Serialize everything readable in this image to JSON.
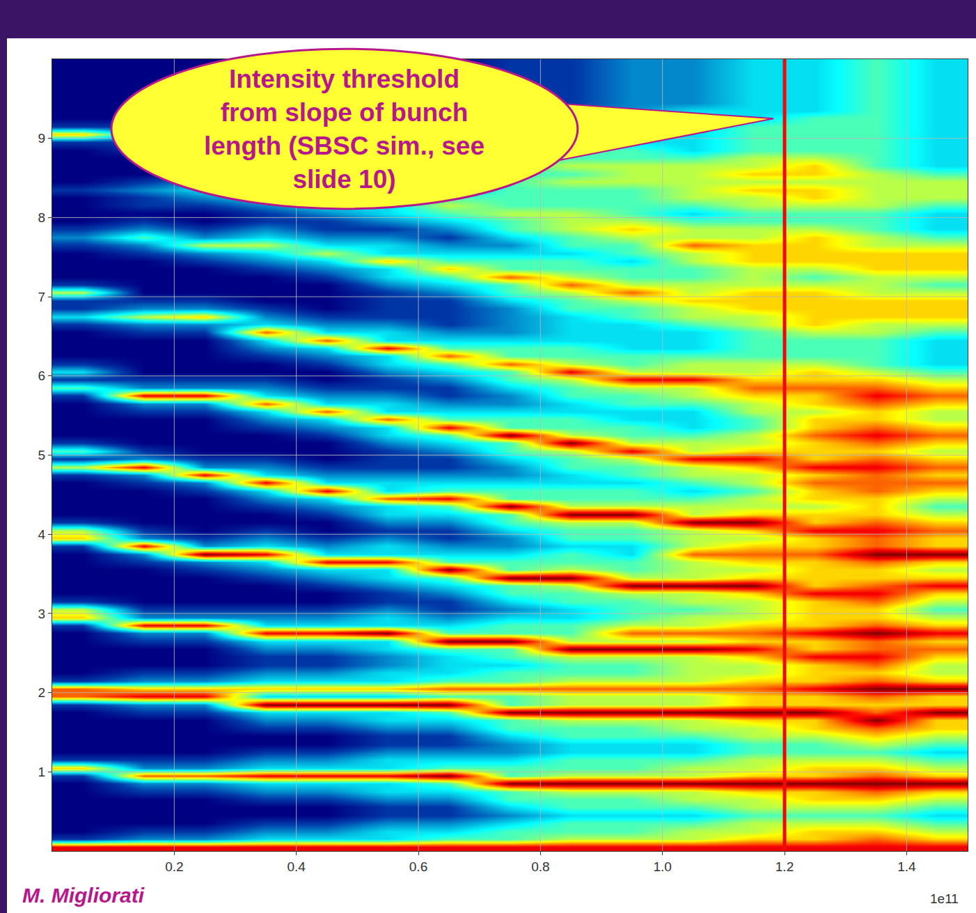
{
  "chart_data": {
    "type": "heatmap",
    "annotation": [
      "Intensity threshold",
      "from slope of bunch",
      "length (SBSC sim., see",
      "slide 10)"
    ],
    "credit": "M. Migliorati",
    "x_exponent": "1e11",
    "threshold": 1.2,
    "color": "Jet",
    "grid": true,
    "xlim": [
      0,
      1.5
    ],
    "xticks": [
      0.2,
      0.4,
      0.6,
      0.8,
      {
        "value": 1,
        "label": "1.0"
      },
      1.2,
      1.4
    ],
    "ylim": [
      0,
      10
    ],
    "yticks": [
      1,
      2,
      3,
      4,
      5,
      6,
      7,
      8,
      9
    ],
    "zlim": [
      0,
      9
    ],
    "x": [
      0.05,
      0.15,
      0.25,
      0.35,
      0.45,
      0.55,
      0.65,
      0.75,
      0.85,
      0.95,
      1.05,
      1.15,
      1.25,
      1.35,
      1.45
    ],
    "y": [
      0.05,
      0.15,
      0.25,
      0.35,
      0.45,
      0.55,
      0.65,
      0.75,
      0.85,
      0.95,
      1.05,
      1.15,
      1.25,
      1.35,
      1.45,
      1.55,
      1.65,
      1.75,
      1.85,
      1.95,
      2.05,
      2.15,
      2.25,
      2.35,
      2.45,
      2.55,
      2.65,
      2.75,
      2.85,
      2.95,
      3.05,
      3.15,
      3.25,
      3.35,
      3.45,
      3.55,
      3.65,
      3.75,
      3.85,
      3.95,
      4.05,
      4.15,
      4.25,
      4.35,
      4.45,
      4.55,
      4.65,
      4.75,
      4.85,
      4.95,
      5.05,
      5.15,
      5.25,
      5.35,
      5.45,
      5.55,
      5.65,
      5.75,
      5.85,
      5.95,
      6.05,
      6.15,
      6.25,
      6.35,
      6.45,
      6.55,
      6.65,
      6.75,
      6.85,
      6.95,
      7.05,
      7.15,
      7.25,
      7.35,
      7.45,
      7.55,
      7.65,
      7.75,
      7.85,
      7.95,
      8.05,
      8.15,
      8.25,
      8.35,
      8.45,
      8.55,
      8.65,
      8.75,
      8.85,
      8.95,
      9.05,
      9.15,
      9.25,
      9.35,
      9.45,
      9.55,
      9.65,
      9.75,
      9.85,
      9.95
    ],
    "z": [
      [
        8,
        1,
        0,
        0,
        0,
        0,
        0,
        0,
        0,
        1,
        6,
        1,
        0,
        0,
        0,
        0,
        0,
        0,
        1,
        7,
        7,
        1,
        0,
        0,
        0,
        0,
        0,
        0,
        1,
        6,
        5,
        1,
        0,
        0,
        0,
        0,
        0,
        0,
        1,
        6,
        5,
        1,
        0,
        0,
        0,
        0,
        0,
        1,
        5,
        1,
        4,
        1,
        0,
        0,
        0,
        0,
        0,
        1,
        4,
        1,
        3,
        1,
        0,
        0,
        0,
        0,
        1,
        3,
        1,
        1,
        5,
        1,
        0,
        0,
        0,
        0,
        1,
        2,
        1,
        0,
        0,
        0,
        0,
        1,
        0,
        0,
        0,
        0,
        0,
        1,
        6,
        1,
        0,
        0,
        0,
        0,
        0,
        0,
        0,
        0
      ],
      [
        8,
        2,
        1,
        0,
        0,
        0,
        0,
        1,
        2,
        7,
        2,
        1,
        0,
        0,
        0,
        0,
        0,
        1,
        2,
        8,
        6,
        2,
        1,
        0,
        0,
        0,
        1,
        2,
        8,
        2,
        1,
        0,
        0,
        0,
        0,
        0,
        1,
        2,
        8,
        2,
        1,
        0,
        0,
        0,
        0,
        0,
        1,
        2,
        8,
        2,
        1,
        0,
        0,
        0,
        0,
        1,
        2,
        8,
        2,
        1,
        0,
        0,
        0,
        0,
        0,
        1,
        2,
        5,
        2,
        1,
        0,
        0,
        0,
        0,
        0,
        1,
        2,
        4,
        2,
        1,
        0,
        1,
        1,
        2,
        1,
        0,
        0,
        0,
        1,
        1,
        2,
        1,
        0,
        0,
        0,
        0,
        0,
        0,
        0,
        0
      ],
      [
        8,
        2,
        1,
        0,
        0,
        0,
        0,
        1,
        2,
        7,
        2,
        1,
        0,
        0,
        0,
        0,
        0,
        1,
        2,
        8,
        6,
        2,
        1,
        0,
        0,
        0,
        1,
        2,
        8,
        2,
        1,
        0,
        0,
        0,
        0,
        1,
        2,
        9,
        2,
        1,
        0,
        0,
        0,
        0,
        0,
        1,
        2,
        8,
        2,
        1,
        0,
        0,
        0,
        0,
        0,
        1,
        2,
        8,
        2,
        1,
        0,
        0,
        0,
        0,
        0,
        1,
        2,
        6,
        2,
        1,
        0,
        0,
        0,
        0,
        1,
        2,
        5,
        2,
        1,
        0,
        0,
        1,
        2,
        3,
        2,
        1,
        0,
        1,
        2,
        2,
        2,
        1,
        0,
        0,
        0,
        0,
        0,
        0,
        0,
        0
      ],
      [
        8,
        3,
        2,
        1,
        0,
        0,
        1,
        2,
        3,
        8,
        3,
        2,
        1,
        0,
        0,
        1,
        2,
        3,
        9,
        3,
        6,
        3,
        2,
        1,
        1,
        2,
        3,
        8,
        3,
        2,
        1,
        0,
        0,
        0,
        1,
        2,
        3,
        8,
        3,
        2,
        1,
        0,
        0,
        1,
        2,
        3,
        8,
        3,
        2,
        1,
        0,
        0,
        0,
        1,
        2,
        3,
        7,
        3,
        2,
        1,
        0,
        0,
        1,
        2,
        3,
        7,
        3,
        2,
        1,
        0,
        0,
        0,
        0,
        1,
        2,
        3,
        5,
        3,
        2,
        1,
        1,
        2,
        3,
        4,
        3,
        2,
        2,
        2,
        3,
        3,
        3,
        2,
        1,
        0,
        0,
        0,
        0,
        0,
        0,
        0
      ],
      [
        8,
        3,
        2,
        1,
        0,
        0,
        1,
        2,
        3,
        8,
        3,
        2,
        1,
        0,
        0,
        1,
        2,
        3,
        9,
        3,
        6,
        3,
        2,
        1,
        1,
        2,
        3,
        8,
        3,
        2,
        1,
        0,
        0,
        1,
        2,
        3,
        8,
        3,
        2,
        1,
        0,
        0,
        1,
        2,
        3,
        8,
        3,
        2,
        1,
        0,
        0,
        0,
        1,
        2,
        3,
        7,
        3,
        2,
        1,
        0,
        0,
        1,
        2,
        3,
        7,
        3,
        2,
        1,
        0,
        0,
        0,
        0,
        1,
        2,
        3,
        5,
        3,
        2,
        1,
        1,
        2,
        3,
        4,
        3,
        2,
        1,
        2,
        3,
        3,
        3,
        2,
        1,
        0,
        0,
        0,
        0,
        0,
        0,
        0,
        0
      ],
      [
        8,
        3,
        3,
        2,
        1,
        1,
        2,
        3,
        3,
        8,
        3,
        3,
        2,
        1,
        1,
        2,
        3,
        3,
        9,
        3,
        6,
        3,
        3,
        2,
        2,
        3,
        3,
        9,
        3,
        3,
        2,
        1,
        1,
        2,
        3,
        3,
        8,
        3,
        3,
        2,
        1,
        2,
        3,
        3,
        7,
        3,
        3,
        2,
        1,
        1,
        1,
        2,
        3,
        3,
        7,
        3,
        3,
        2,
        1,
        1,
        2,
        3,
        3,
        8,
        3,
        3,
        2,
        1,
        1,
        1,
        1,
        2,
        3,
        3,
        6,
        3,
        3,
        2,
        1,
        2,
        3,
        3,
        4,
        3,
        3,
        3,
        3,
        3,
        3,
        3,
        3,
        2,
        1,
        0,
        0,
        0,
        0,
        0,
        0,
        0
      ],
      [
        8,
        4,
        3,
        2,
        1,
        1,
        2,
        3,
        4,
        9,
        4,
        3,
        2,
        1,
        1,
        2,
        3,
        4,
        9,
        4,
        7,
        4,
        3,
        3,
        3,
        4,
        9,
        4,
        3,
        2,
        1,
        1,
        2,
        3,
        4,
        9,
        4,
        3,
        2,
        1,
        1,
        2,
        3,
        4,
        8,
        4,
        3,
        2,
        1,
        1,
        2,
        3,
        4,
        8,
        4,
        3,
        2,
        1,
        1,
        2,
        3,
        4,
        7,
        4,
        3,
        2,
        1,
        1,
        1,
        1,
        2,
        3,
        4,
        6,
        4,
        3,
        2,
        1,
        2,
        3,
        4,
        5,
        4,
        3,
        3,
        3,
        4,
        4,
        4,
        3,
        2,
        1,
        0,
        0,
        0,
        0,
        0,
        0,
        0,
        0
      ],
      [
        8,
        4,
        4,
        3,
        2,
        3,
        4,
        4,
        9,
        4,
        4,
        3,
        2,
        2,
        3,
        4,
        4,
        9,
        4,
        4,
        7,
        4,
        4,
        3,
        4,
        4,
        9,
        4,
        4,
        3,
        2,
        3,
        4,
        4,
        9,
        4,
        4,
        3,
        2,
        2,
        3,
        4,
        4,
        9,
        4,
        4,
        3,
        2,
        2,
        3,
        4,
        4,
        9,
        4,
        4,
        3,
        2,
        2,
        3,
        4,
        4,
        7,
        4,
        4,
        3,
        2,
        2,
        2,
        2,
        3,
        4,
        4,
        7,
        4,
        4,
        3,
        2,
        3,
        4,
        4,
        5,
        4,
        4,
        4,
        4,
        4,
        4,
        4,
        4,
        3,
        2,
        2,
        1,
        1,
        1,
        1,
        1,
        1,
        1,
        1
      ],
      [
        8,
        5,
        4,
        4,
        3,
        4,
        4,
        5,
        9,
        5,
        4,
        4,
        3,
        3,
        4,
        4,
        5,
        9,
        5,
        5,
        7,
        5,
        4,
        4,
        5,
        9,
        5,
        4,
        4,
        3,
        3,
        4,
        4,
        5,
        9,
        5,
        4,
        4,
        3,
        4,
        4,
        5,
        9,
        5,
        4,
        4,
        3,
        3,
        4,
        4,
        5,
        9,
        5,
        4,
        4,
        3,
        3,
        4,
        4,
        5,
        8,
        5,
        4,
        4,
        3,
        3,
        3,
        3,
        4,
        4,
        5,
        7,
        5,
        4,
        4,
        3,
        4,
        4,
        5,
        5,
        5,
        4,
        4,
        4,
        5,
        4,
        5,
        4,
        4,
        3,
        2,
        2,
        2,
        2,
        1,
        1,
        1,
        1,
        1,
        1
      ],
      [
        8,
        5,
        4,
        4,
        3,
        4,
        4,
        5,
        9,
        5,
        4,
        4,
        3,
        3,
        4,
        4,
        5,
        9,
        5,
        5,
        7,
        5,
        4,
        4,
        5,
        9,
        5,
        7,
        5,
        4,
        4,
        4,
        5,
        9,
        5,
        4,
        4,
        3,
        3,
        4,
        4,
        5,
        9,
        5,
        4,
        4,
        3,
        4,
        4,
        5,
        8,
        5,
        4,
        4,
        3,
        3,
        4,
        4,
        5,
        8,
        5,
        4,
        4,
        3,
        3,
        3,
        3,
        4,
        4,
        5,
        7,
        5,
        4,
        4,
        3,
        4,
        4,
        5,
        6,
        5,
        4,
        4,
        4,
        4,
        5,
        5,
        5,
        4,
        4,
        3,
        3,
        3,
        2,
        2,
        2,
        2,
        2,
        2,
        2,
        2
      ],
      [
        8,
        5,
        5,
        4,
        3,
        4,
        5,
        5,
        9,
        5,
        5,
        4,
        3,
        3,
        4,
        5,
        5,
        9,
        5,
        5,
        7,
        5,
        5,
        5,
        5,
        9,
        5,
        7,
        5,
        5,
        4,
        5,
        5,
        9,
        5,
        5,
        5,
        7,
        5,
        5,
        5,
        9,
        5,
        5,
        4,
        3,
        4,
        5,
        5,
        8,
        5,
        5,
        4,
        3,
        3,
        3,
        4,
        5,
        5,
        8,
        5,
        5,
        4,
        3,
        3,
        3,
        4,
        5,
        5,
        6,
        5,
        5,
        4,
        4,
        5,
        5,
        7,
        5,
        5,
        4,
        3,
        4,
        5,
        5,
        5,
        5,
        5,
        4,
        3,
        3,
        3,
        3,
        3,
        3,
        2,
        2,
        2,
        2,
        2,
        2
      ],
      [
        8,
        6,
        5,
        5,
        4,
        5,
        5,
        6,
        9,
        6,
        5,
        5,
        4,
        4,
        5,
        5,
        6,
        9,
        6,
        6,
        7,
        6,
        5,
        5,
        6,
        8,
        6,
        7,
        6,
        5,
        5,
        5,
        6,
        9,
        6,
        5,
        6,
        7,
        6,
        5,
        6,
        9,
        6,
        5,
        5,
        4,
        5,
        5,
        6,
        8,
        6,
        5,
        5,
        4,
        4,
        5,
        5,
        6,
        7,
        6,
        5,
        5,
        4,
        4,
        4,
        4,
        5,
        5,
        6,
        6,
        6,
        5,
        5,
        5,
        6,
        6,
        6,
        5,
        5,
        4,
        4,
        5,
        5,
        6,
        5,
        6,
        5,
        5,
        4,
        4,
        4,
        4,
        3,
        3,
        3,
        3,
        3,
        3,
        3,
        3
      ],
      [
        8,
        6,
        6,
        5,
        4,
        5,
        6,
        6,
        9,
        6,
        6,
        5,
        4,
        4,
        5,
        6,
        6,
        9,
        6,
        6,
        8,
        6,
        6,
        6,
        8,
        6,
        6,
        8,
        6,
        6,
        6,
        6,
        8,
        6,
        6,
        6,
        6,
        7,
        6,
        6,
        8,
        6,
        6,
        5,
        6,
        6,
        7,
        6,
        8,
        6,
        6,
        6,
        7,
        6,
        6,
        5,
        6,
        6,
        7,
        6,
        6,
        5,
        4,
        4,
        4,
        5,
        6,
        6,
        6,
        6,
        6,
        5,
        4,
        5,
        6,
        6,
        6,
        6,
        5,
        4,
        4,
        5,
        6,
        6,
        5,
        6,
        6,
        5,
        4,
        4,
        4,
        4,
        4,
        3,
        3,
        3,
        3,
        3,
        3,
        3
      ],
      [
        8,
        7,
        6,
        5,
        4,
        5,
        6,
        7,
        9,
        7,
        6,
        5,
        4,
        5,
        6,
        7,
        9,
        7,
        6,
        7,
        9,
        7,
        6,
        7,
        8,
        7,
        7,
        9,
        7,
        6,
        6,
        7,
        8,
        7,
        6,
        6,
        7,
        9,
        7,
        7,
        8,
        7,
        6,
        6,
        6,
        7,
        7,
        7,
        8,
        7,
        6,
        7,
        8,
        7,
        6,
        6,
        7,
        8,
        7,
        6,
        5,
        4,
        4,
        4,
        4,
        5,
        5,
        6,
        6,
        6,
        5,
        5,
        5,
        6,
        6,
        6,
        5,
        5,
        4,
        4,
        4,
        5,
        5,
        5,
        5,
        5,
        4,
        4,
        4,
        4,
        4,
        4,
        4,
        4,
        4,
        4,
        4,
        4,
        4,
        4
      ],
      [
        8,
        6,
        5,
        4,
        3,
        4,
        5,
        6,
        9,
        6,
        5,
        4,
        3,
        4,
        5,
        6,
        6,
        9,
        6,
        6,
        9,
        6,
        5,
        5,
        6,
        7,
        6,
        8,
        6,
        5,
        4,
        5,
        6,
        8,
        6,
        5,
        6,
        9,
        6,
        6,
        7,
        6,
        5,
        4,
        5,
        6,
        7,
        6,
        7,
        6,
        5,
        6,
        7,
        6,
        5,
        5,
        6,
        7,
        6,
        5,
        4,
        3,
        3,
        3,
        3,
        4,
        5,
        6,
        6,
        6,
        5,
        4,
        5,
        6,
        6,
        6,
        5,
        4,
        3,
        3,
        3,
        4,
        5,
        5,
        5,
        4,
        3,
        3,
        3,
        3,
        3,
        3,
        3,
        3,
        3,
        3,
        3,
        3,
        3,
        3
      ]
    ]
  }
}
